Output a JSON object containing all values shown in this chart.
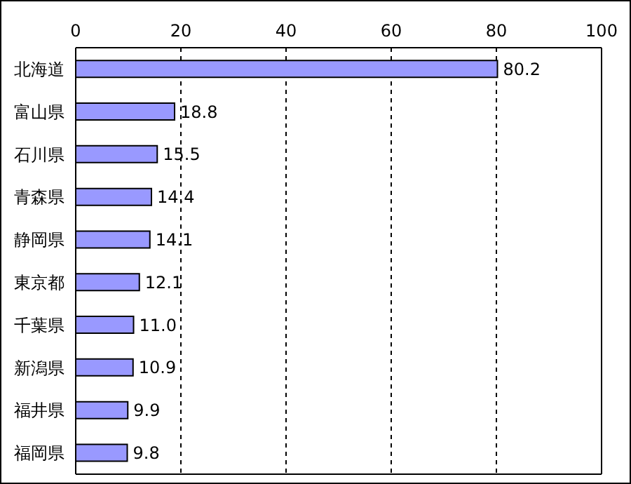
{
  "chart_data": {
    "type": "bar",
    "orientation": "horizontal",
    "categories": [
      "北海道",
      "富山県",
      "石川県",
      "青森県",
      "静岡県",
      "東京都",
      "千葉県",
      "新潟県",
      "福井県",
      "福岡県"
    ],
    "values": [
      80.2,
      18.8,
      15.5,
      14.4,
      14.1,
      12.1,
      11.0,
      10.9,
      9.9,
      9.8
    ],
    "value_labels": [
      "80.2",
      "18.8",
      "15.5",
      "14.4",
      "14.1",
      "12.1",
      "11.0",
      "10.9",
      "9.9",
      "9.8"
    ],
    "color": "#9999ff",
    "xlim": [
      0,
      100
    ],
    "xticks": [
      0,
      20,
      40,
      60,
      80,
      100
    ],
    "grid": "x"
  }
}
